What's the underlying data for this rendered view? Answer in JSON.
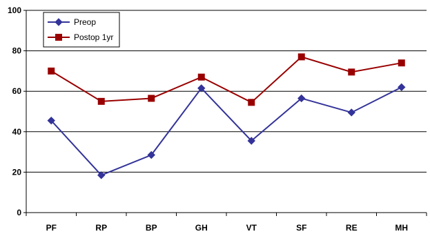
{
  "chart_data": {
    "type": "line",
    "categories": [
      "PF",
      "RP",
      "BP",
      "GH",
      "VT",
      "SF",
      "RE",
      "MH"
    ],
    "series": [
      {
        "name": "Preop",
        "values": [
          45.5,
          18.5,
          28.5,
          61.5,
          35.5,
          56.5,
          49.5,
          62
        ],
        "color": "#333399",
        "marker": "diamond"
      },
      {
        "name": "Postop 1yr",
        "values": [
          70,
          55,
          56.5,
          67,
          54.5,
          77,
          69.5,
          74
        ],
        "color": "#990000",
        "marker": "square"
      }
    ],
    "ylim": [
      0,
      100
    ],
    "yticks": [
      0,
      20,
      40,
      60,
      80,
      100
    ],
    "grid": true,
    "legend_position": "top-left",
    "title": "",
    "xlabel": "",
    "ylabel": ""
  }
}
